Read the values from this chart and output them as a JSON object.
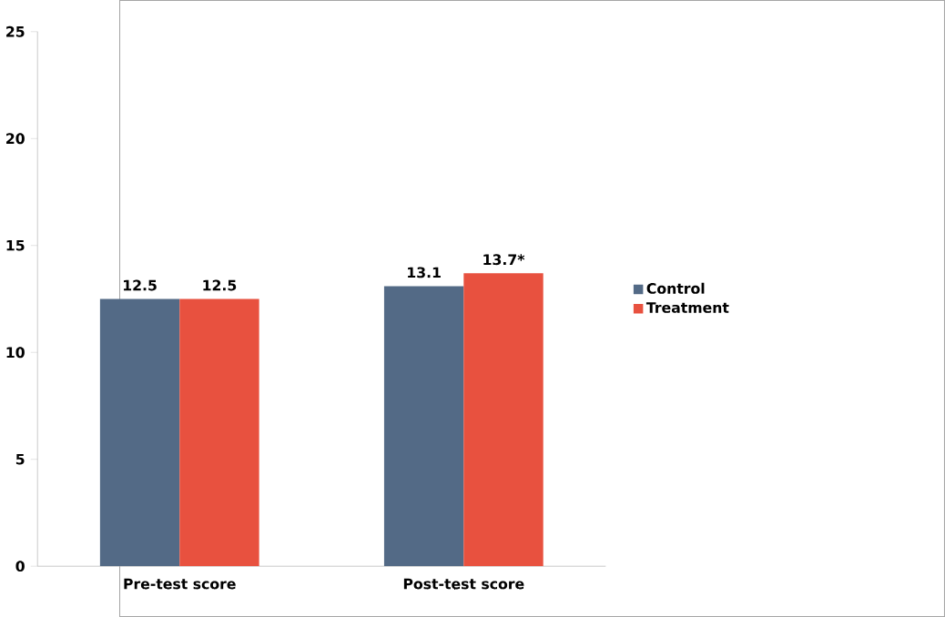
{
  "chart_data": {
    "type": "bar",
    "categories": [
      "Pre-test score",
      "Post-test score"
    ],
    "series": [
      {
        "name": "Control",
        "color": "#536a86",
        "values": [
          12.5,
          13.1
        ],
        "value_labels": [
          "12.5",
          "13.1"
        ]
      },
      {
        "name": "Treatment",
        "color": "#e8513f",
        "values": [
          12.5,
          13.7
        ],
        "value_labels": [
          "12.5",
          "13.7*"
        ]
      }
    ],
    "ylim": [
      0,
      25
    ],
    "yticks": [
      0,
      5,
      10,
      15,
      20,
      25
    ],
    "grid": false,
    "legend": "right"
  }
}
